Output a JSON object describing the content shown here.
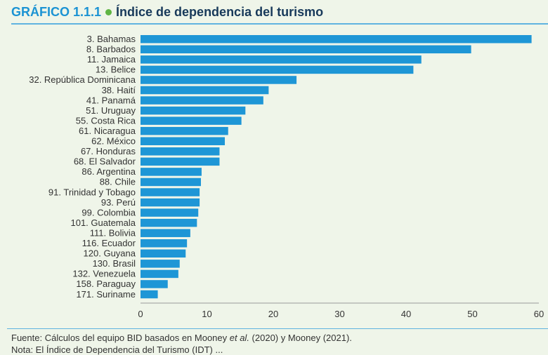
{
  "header": {
    "number": "GRÁFICO 1.1.1",
    "title": "Índice de dependencia del turismo"
  },
  "colors": {
    "bar": "#1e96d6",
    "accent": "#1b93d3",
    "title": "#17395a",
    "dot": "#5fb543"
  },
  "chart_data": {
    "type": "bar",
    "orientation": "horizontal",
    "categories": [
      "3. Bahamas",
      "8. Barbados",
      "11. Jamaica",
      "13. Belice",
      "32. República Dominicana",
      "38. Haití",
      "41. Panamá",
      "51. Uruguay",
      "55. Costa Rica",
      "61. Nicaragua",
      "62. México",
      "67. Honduras",
      "68. El Salvador",
      "86. Argentina",
      "88. Chile",
      "91. Trinidad y Tobago",
      "93. Perú",
      "99. Colombia",
      "101. Guatemala",
      "111. Bolivia",
      "116. Ecuador",
      "120. Guyana",
      "130. Brasil",
      "132. Venezuela",
      "158. Paraguay",
      "171. Suriname"
    ],
    "values": [
      58.9,
      49.8,
      42.3,
      41.1,
      23.5,
      19.3,
      18.5,
      15.8,
      15.2,
      13.2,
      12.7,
      11.9,
      11.9,
      9.2,
      9.1,
      8.9,
      8.9,
      8.7,
      8.5,
      7.5,
      7.0,
      6.8,
      5.9,
      5.7,
      4.1,
      2.6
    ],
    "xlim": [
      0,
      60
    ],
    "xticks": [
      "0",
      "10",
      "20",
      "30",
      "40",
      "50",
      "60"
    ],
    "grid": false,
    "xlabel": "",
    "ylabel": ""
  },
  "footer": {
    "source_prefix": "Fuente: Cálculos del equipo BID basados en Mooney ",
    "source_italic": "et al.",
    "source_suffix": " (2020) y Mooney (2021).",
    "note": "Nota: El Índice de Dependencia del Turismo (IDT) ..."
  }
}
